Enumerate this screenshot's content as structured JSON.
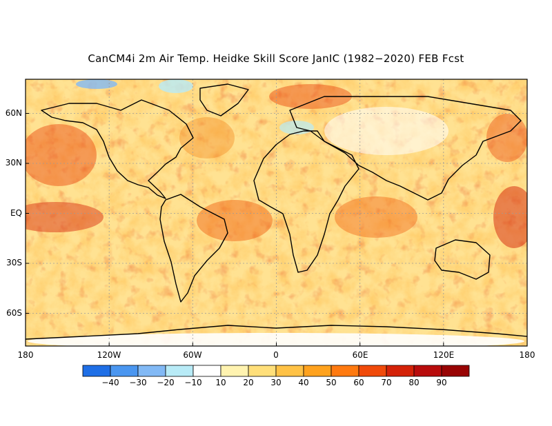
{
  "title": "CanCM4i 2m Air Temp. Heidke Skill Score JanIC (1982−2020) FEB Fcst",
  "map": {
    "lat_ticks": [
      {
        "label": "60N",
        "lat": 60
      },
      {
        "label": "30N",
        "lat": 30
      },
      {
        "label": "EQ",
        "lat": 0
      },
      {
        "label": "30S",
        "lat": -30
      },
      {
        "label": "60S",
        "lat": -60
      }
    ],
    "lon_ticks": [
      {
        "label": "180",
        "lon": -180
      },
      {
        "label": "120W",
        "lon": -120
      },
      {
        "label": "60W",
        "lon": -60
      },
      {
        "label": "0",
        "lon": 0
      },
      {
        "label": "60E",
        "lon": 60
      },
      {
        "label": "120E",
        "lon": 120
      },
      {
        "label": "180",
        "lon": 180
      }
    ],
    "lat_range": [
      -80,
      80
    ],
    "lon_range": [
      -180,
      180
    ],
    "grid": "dotted"
  },
  "colorbar": {
    "labels": [
      "−40",
      "−30",
      "−20",
      "−10",
      "10",
      "20",
      "30",
      "40",
      "50",
      "60",
      "70",
      "80",
      "90"
    ],
    "colors": [
      "#1f6fe6",
      "#4a96f0",
      "#82b9f5",
      "#b8ebf7",
      "#ffffff",
      "#fff3b0",
      "#ffdf7a",
      "#ffc246",
      "#ffa21e",
      "#ff7a10",
      "#f04a0a",
      "#d42208",
      "#b80c0c",
      "#980404"
    ]
  }
}
